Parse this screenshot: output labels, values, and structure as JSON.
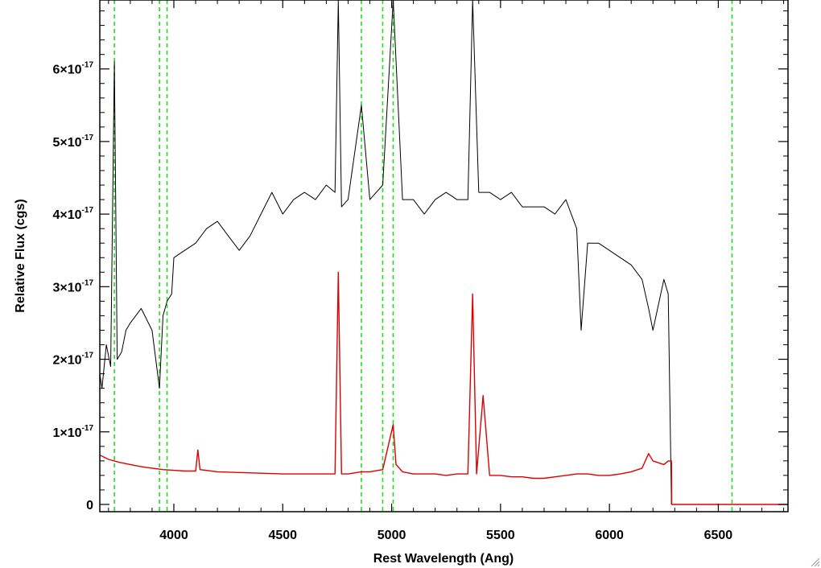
{
  "chart_data": {
    "type": "line",
    "title": "",
    "xlabel": "Rest Wavelength (Ang)",
    "ylabel": "Relative Flux (cgs)",
    "xlim": [
      3660,
      6820
    ],
    "ylim": [
      -0.1,
      6.95
    ],
    "y_scale_exponent": -17,
    "x_ticks": [
      4000,
      4500,
      5000,
      5500,
      6000,
      6500
    ],
    "x_tick_labels": [
      "4000",
      "4500",
      "5000",
      "5500",
      "6000",
      "6500"
    ],
    "y_ticks": [
      0,
      1,
      2,
      3,
      4,
      5,
      6
    ],
    "y_tick_labels": [
      {
        "mantissa": "0",
        "exponent": ""
      },
      {
        "mantissa": "1×10",
        "exponent": "-17"
      },
      {
        "mantissa": "2×10",
        "exponent": "-17"
      },
      {
        "mantissa": "3×10",
        "exponent": "-17"
      },
      {
        "mantissa": "4×10",
        "exponent": "-17"
      },
      {
        "mantissa": "5×10",
        "exponent": "-17"
      },
      {
        "mantissa": "6×10",
        "exponent": "-17"
      }
    ],
    "grid": false,
    "legend": "none",
    "reference_lines": [
      3727,
      3934,
      3969,
      4861,
      4959,
      5007,
      6563
    ],
    "series": [
      {
        "color": "#000000",
        "x": [
          3660,
          3670,
          3690,
          3710,
          3727,
          3740,
          3760,
          3780,
          3800,
          3850,
          3900,
          3934,
          3950,
          3969,
          3990,
          4000,
          4050,
          4100,
          4150,
          4200,
          4250,
          4300,
          4350,
          4400,
          4450,
          4500,
          4550,
          4600,
          4650,
          4700,
          4740,
          4755,
          4770,
          4800,
          4861,
          4900,
          4959,
          5007,
          5050,
          5100,
          5150,
          5200,
          5250,
          5300,
          5350,
          5372,
          5400,
          5450,
          5500,
          5550,
          5600,
          5650,
          5700,
          5750,
          5800,
          5850,
          5870,
          5900,
          5950,
          6000,
          6050,
          6100,
          6150,
          6180,
          6200,
          6250,
          6270,
          6285
        ],
        "y": [
          1.8,
          1.6,
          2.2,
          1.9,
          6.1,
          2.0,
          2.1,
          2.4,
          2.5,
          2.7,
          2.4,
          1.6,
          2.6,
          2.8,
          2.9,
          3.4,
          3.5,
          3.6,
          3.8,
          3.9,
          3.7,
          3.5,
          3.7,
          4.0,
          4.3,
          4.0,
          4.2,
          4.3,
          4.2,
          4.4,
          4.3,
          7.2,
          4.1,
          4.2,
          5.5,
          4.2,
          4.4,
          7.0,
          4.2,
          4.2,
          4.0,
          4.2,
          4.3,
          4.2,
          4.2,
          7.0,
          4.3,
          4.3,
          4.2,
          4.3,
          4.1,
          4.1,
          4.1,
          4.0,
          4.2,
          3.8,
          2.4,
          3.6,
          3.6,
          3.5,
          3.4,
          3.3,
          3.1,
          2.7,
          2.4,
          3.1,
          2.9,
          0.0
        ]
      },
      {
        "color": "#dd0000",
        "x": [
          3660,
          3700,
          3750,
          3800,
          3850,
          3900,
          3950,
          4000,
          4050,
          4100,
          4110,
          4120,
          4200,
          4300,
          4400,
          4500,
          4600,
          4650,
          4700,
          4740,
          4755,
          4770,
          4800,
          4861,
          4900,
          4959,
          5007,
          5020,
          5050,
          5100,
          5150,
          5200,
          5250,
          5300,
          5350,
          5372,
          5390,
          5420,
          5450,
          5500,
          5550,
          5600,
          5650,
          5700,
          5750,
          5800,
          5850,
          5900,
          5950,
          6000,
          6050,
          6100,
          6150,
          6180,
          6200,
          6250,
          6270,
          6285,
          6286,
          6820
        ],
        "y": [
          0.68,
          0.62,
          0.58,
          0.55,
          0.52,
          0.5,
          0.48,
          0.47,
          0.46,
          0.46,
          0.75,
          0.48,
          0.45,
          0.44,
          0.43,
          0.42,
          0.42,
          0.42,
          0.42,
          0.42,
          3.2,
          0.42,
          0.42,
          0.45,
          0.45,
          0.48,
          1.1,
          0.55,
          0.45,
          0.42,
          0.42,
          0.42,
          0.4,
          0.42,
          0.42,
          2.9,
          0.42,
          1.5,
          0.4,
          0.4,
          0.38,
          0.38,
          0.36,
          0.36,
          0.38,
          0.4,
          0.42,
          0.42,
          0.4,
          0.4,
          0.42,
          0.45,
          0.5,
          0.7,
          0.6,
          0.55,
          0.6,
          0.6,
          0.0,
          0.0
        ]
      }
    ]
  }
}
